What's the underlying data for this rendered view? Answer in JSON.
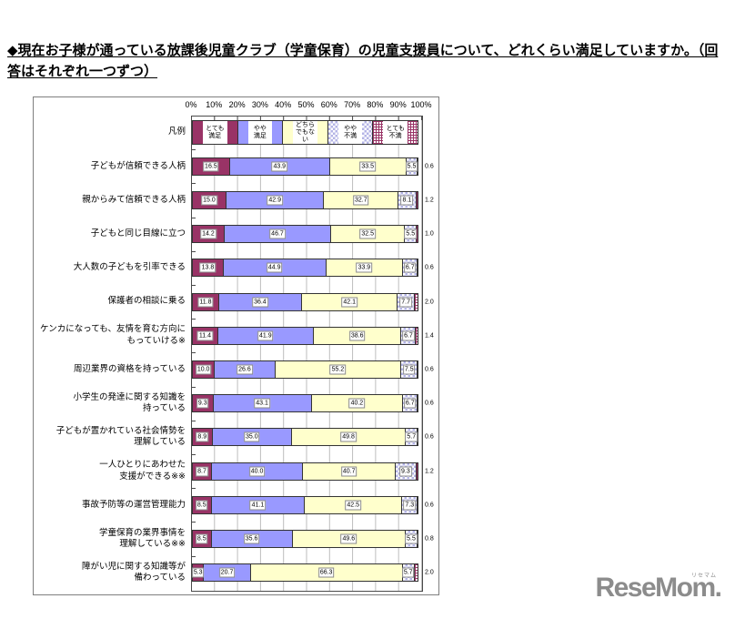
{
  "page": {
    "title": "◆現在お子様が通っている放課後児童クラブ（学童保育）の児童支援員について、どれくらい満足していますか。（回答はそれぞれ一つずつ）"
  },
  "chart_data": {
    "type": "bar",
    "orientation": "horizontal",
    "stacked": true,
    "xlim": [
      0,
      100
    ],
    "grid": true,
    "axis_ticks": [
      "0%",
      "10%",
      "20%",
      "30%",
      "40%",
      "50%",
      "60%",
      "70%",
      "80%",
      "90%",
      "100%"
    ],
    "legend_label": "凡例",
    "legend_position": "top-row-inside-plot",
    "series": [
      {
        "name": "とても満足",
        "display": "とても\n満足",
        "color": "#993366",
        "pattern": "solid",
        "values": [
          16.5,
          15.0,
          14.2,
          13.8,
          11.8,
          11.4,
          10.0,
          9.3,
          8.9,
          8.7,
          8.5,
          8.5,
          5.3
        ]
      },
      {
        "name": "やや満足",
        "display": "やや\n満足",
        "color": "#9999ff",
        "pattern": "solid",
        "values": [
          43.9,
          42.9,
          46.7,
          44.9,
          36.4,
          41.9,
          26.6,
          43.1,
          35.0,
          40.0,
          41.1,
          35.6,
          20.7
        ]
      },
      {
        "name": "どちらでもない",
        "display": "どちら\nでもない",
        "color": "#ffffcc",
        "pattern": "solid",
        "values": [
          33.5,
          32.7,
          32.5,
          33.9,
          42.1,
          38.6,
          55.2,
          40.2,
          49.8,
          40.7,
          42.5,
          49.6,
          66.3
        ]
      },
      {
        "name": "やや不満",
        "display": "やや\n不満",
        "color": "#ccccff",
        "pattern": "checker",
        "values": [
          5.5,
          8.1,
          5.5,
          6.7,
          7.7,
          6.7,
          7.5,
          6.7,
          5.7,
          9.3,
          7.3,
          5.5,
          5.7
        ]
      },
      {
        "name": "とても不満",
        "display": "とても\n不満",
        "color": "#993366",
        "pattern": "grid",
        "values": [
          0.6,
          1.2,
          1.0,
          0.6,
          2.0,
          1.4,
          0.6,
          0.6,
          0.6,
          1.2,
          0.6,
          0.8,
          2.0
        ]
      }
    ],
    "categories": [
      "子どもが信頼できる人柄",
      "親からみて信頼できる人柄",
      "子どもと同じ目線に立つ",
      "大人数の子どもを引率できる",
      "保護者の相談に乗る",
      "ケンカになっても、友情を育む方向に\nもっていける※",
      "周辺業界の資格を持っている",
      "小学生の発達に関する知識を\n持っている",
      "子どもが置かれている社会情勢を\n理解している",
      "一人ひとりにあわせた\n支援ができる※※",
      "事故予防等の運営管理能力",
      "学童保育の業界事情を\n理解している※※",
      "障がい児に関する知識等が\n備わっている"
    ]
  },
  "logo": {
    "text": "ReseMom",
    "dot": ".",
    "ruby": "リセマム",
    "color": "#8c8c8c"
  }
}
